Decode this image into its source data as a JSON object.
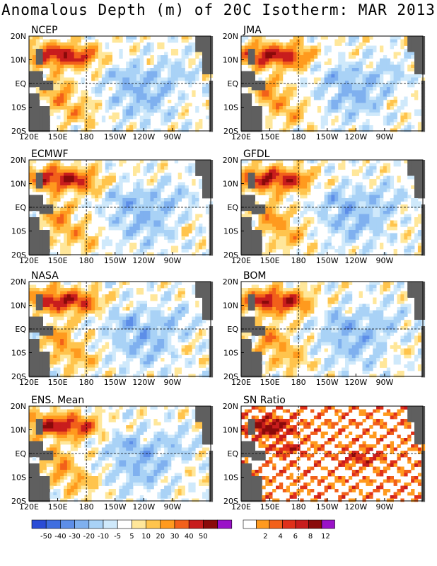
{
  "title": "Anomalous Depth (m) of 20C Isotherm: MAR 2013",
  "colors": {
    "neg50": "#2a4cd6",
    "neg40": "#3f6ee0",
    "neg30": "#5d8ee8",
    "neg20": "#7fb0ef",
    "neg10": "#a9d2f6",
    "neg5": "#cfe9fb",
    "neutral": "#ffffff",
    "pos5": "#ffe79a",
    "pos10": "#ffc44d",
    "pos20": "#ff9a1e",
    "pos30": "#f2601a",
    "pos40": "#c81d1d",
    "pos50": "#8a0a0a",
    "posmax": "#9a12c8",
    "land": "#5f5f5f"
  },
  "chart_data": [
    {
      "type": "heatmap",
      "title": "NCEP",
      "x_ticks": [
        "120E",
        "150E",
        "180",
        "150W",
        "120W",
        "90W"
      ],
      "y_ticks": [
        "20N",
        "10N",
        "EQ",
        "10S",
        "20S"
      ]
    },
    {
      "type": "heatmap",
      "title": "JMA",
      "x_ticks": [
        "120E",
        "150E",
        "180",
        "150W",
        "120W",
        "90W"
      ],
      "y_ticks": [
        "20N",
        "10N",
        "EQ",
        "10S",
        "20S"
      ]
    },
    {
      "type": "heatmap",
      "title": "ECMWF",
      "x_ticks": [
        "120E",
        "150E",
        "180",
        "150W",
        "120W",
        "90W"
      ],
      "y_ticks": [
        "20N",
        "10N",
        "EQ",
        "10S",
        "20S"
      ]
    },
    {
      "type": "heatmap",
      "title": "GFDL",
      "x_ticks": [
        "120E",
        "150E",
        "180",
        "150W",
        "120W",
        "90W"
      ],
      "y_ticks": [
        "20N",
        "10N",
        "EQ",
        "10S",
        "20S"
      ]
    },
    {
      "type": "heatmap",
      "title": "NASA",
      "x_ticks": [
        "120E",
        "150E",
        "180",
        "150W",
        "120W",
        "90W"
      ],
      "y_ticks": [
        "20N",
        "10N",
        "EQ",
        "10S",
        "20S"
      ]
    },
    {
      "type": "heatmap",
      "title": "BOM",
      "x_ticks": [
        "120E",
        "150E",
        "180",
        "150W",
        "120W",
        "90W"
      ],
      "y_ticks": [
        "20N",
        "10N",
        "EQ",
        "10S",
        "20S"
      ]
    },
    {
      "type": "heatmap",
      "title": "ENS. Mean",
      "x_ticks": [
        "120E",
        "150E",
        "180",
        "150W",
        "120W",
        "90W"
      ],
      "y_ticks": [
        "20N",
        "10N",
        "EQ",
        "10S",
        "20S"
      ]
    },
    {
      "type": "heatmap",
      "title": "SN Ratio",
      "x_ticks": [
        "120E",
        "150E",
        "180",
        "150W",
        "120W",
        "90W"
      ],
      "y_ticks": [
        "20N",
        "10N",
        "EQ",
        "10S",
        "20S"
      ]
    }
  ],
  "legend_anomaly": {
    "labels": [
      "-50",
      "-40",
      "-30",
      "-20",
      "-10",
      "-5",
      "5",
      "10",
      "20",
      "30",
      "40",
      "50"
    ],
    "colors": [
      "#2a4cd6",
      "#3f6ee0",
      "#5d8ee8",
      "#7fb0ef",
      "#a9d2f6",
      "#cfe9fb",
      "#ffffff",
      "#ffe79a",
      "#ffc44d",
      "#ff9a1e",
      "#f2601a",
      "#c81d1d",
      "#8a0a0a",
      "#9a12c8"
    ]
  },
  "legend_sn": {
    "labels": [
      "2",
      "4",
      "6",
      "8",
      "12"
    ],
    "colors": [
      "#ffffff",
      "#ff9a1e",
      "#f2601a",
      "#e0301a",
      "#c81d1d",
      "#8a0a0a",
      "#9a12c8"
    ]
  }
}
